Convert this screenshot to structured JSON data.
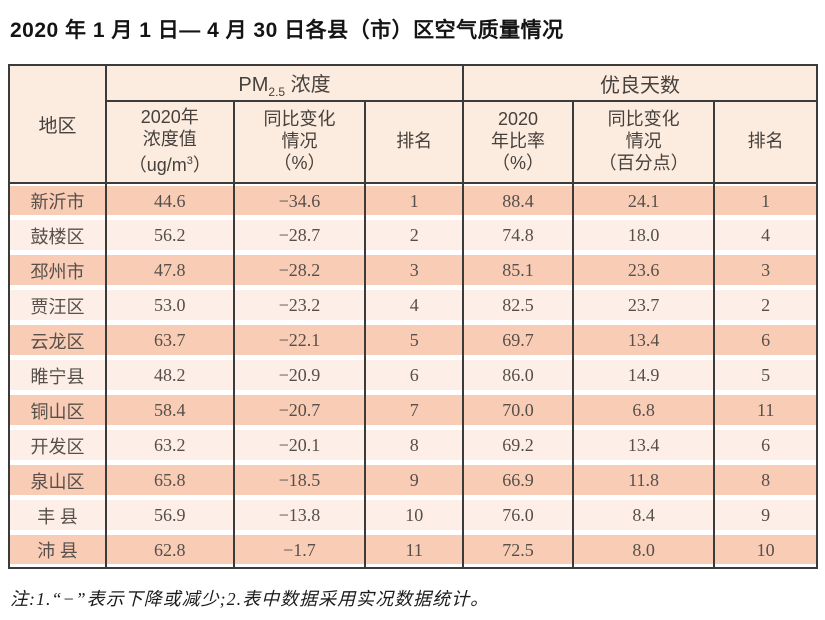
{
  "title": "2020 年 1 月 1 日— 4 月 30 日各县（市）区空气质量情况",
  "table": {
    "region_header": "地区",
    "group_pm": {
      "base": "PM",
      "sub": "2.5",
      "rest": " 浓度"
    },
    "group_days": "优良天数",
    "sub": {
      "conc_line1": "2020年",
      "conc_line2": "浓度值",
      "conc_line3_pre": "（ug/m",
      "conc_line3_sup": "3",
      "conc_line3_post": "）",
      "yoy_pm_line1": "同比变化",
      "yoy_pm_line2": "情况",
      "yoy_pm_line3": "（%）",
      "rank_pm": "排名",
      "ratio_line1": "2020",
      "ratio_line2": "年比率",
      "ratio_line3": "（%）",
      "yoy_days_line1": "同比变化",
      "yoy_days_line2": "情况",
      "yoy_days_line3": "（百分点）",
      "rank_days": "排名"
    },
    "rows": [
      {
        "region": "新沂市",
        "pm_value": "44.6",
        "pm_change": "−34.6",
        "pm_rank": "1",
        "days_ratio": "88.4",
        "days_change": "24.1",
        "days_rank": "1"
      },
      {
        "region": "鼓楼区",
        "pm_value": "56.2",
        "pm_change": "−28.7",
        "pm_rank": "2",
        "days_ratio": "74.8",
        "days_change": "18.0",
        "days_rank": "4"
      },
      {
        "region": "邳州市",
        "pm_value": "47.8",
        "pm_change": "−28.2",
        "pm_rank": "3",
        "days_ratio": "85.1",
        "days_change": "23.6",
        "days_rank": "3"
      },
      {
        "region": "贾汪区",
        "pm_value": "53.0",
        "pm_change": "−23.2",
        "pm_rank": "4",
        "days_ratio": "82.5",
        "days_change": "23.7",
        "days_rank": "2"
      },
      {
        "region": "云龙区",
        "pm_value": "63.7",
        "pm_change": "−22.1",
        "pm_rank": "5",
        "days_ratio": "69.7",
        "days_change": "13.4",
        "days_rank": "6"
      },
      {
        "region": "睢宁县",
        "pm_value": "48.2",
        "pm_change": "−20.9",
        "pm_rank": "6",
        "days_ratio": "86.0",
        "days_change": "14.9",
        "days_rank": "5"
      },
      {
        "region": "铜山区",
        "pm_value": "58.4",
        "pm_change": "−20.7",
        "pm_rank": "7",
        "days_ratio": "70.0",
        "days_change": "6.8",
        "days_rank": "11"
      },
      {
        "region": "开发区",
        "pm_value": "63.2",
        "pm_change": "−20.1",
        "pm_rank": "8",
        "days_ratio": "69.2",
        "days_change": "13.4",
        "days_rank": "6"
      },
      {
        "region": "泉山区",
        "pm_value": "65.8",
        "pm_change": "−18.5",
        "pm_rank": "9",
        "days_ratio": "66.9",
        "days_change": "11.8",
        "days_rank": "8"
      },
      {
        "region": "丰 县",
        "pm_value": "56.9",
        "pm_change": "−13.8",
        "pm_rank": "10",
        "days_ratio": "76.0",
        "days_change": "8.4",
        "days_rank": "9"
      },
      {
        "region": "沛 县",
        "pm_value": "62.8",
        "pm_change": "−1.7",
        "pm_rank": "11",
        "days_ratio": "72.5",
        "days_change": "8.0",
        "days_rank": "10"
      }
    ]
  },
  "footnote": "注:1.“−”表示下降或减少;2.表中数据采用实况数据统计。",
  "colors": {
    "border": "#3b3b3b",
    "row_odd": "#f8ccb5",
    "row_even": "#fdefe7",
    "header_bg": "#fcebdf"
  }
}
